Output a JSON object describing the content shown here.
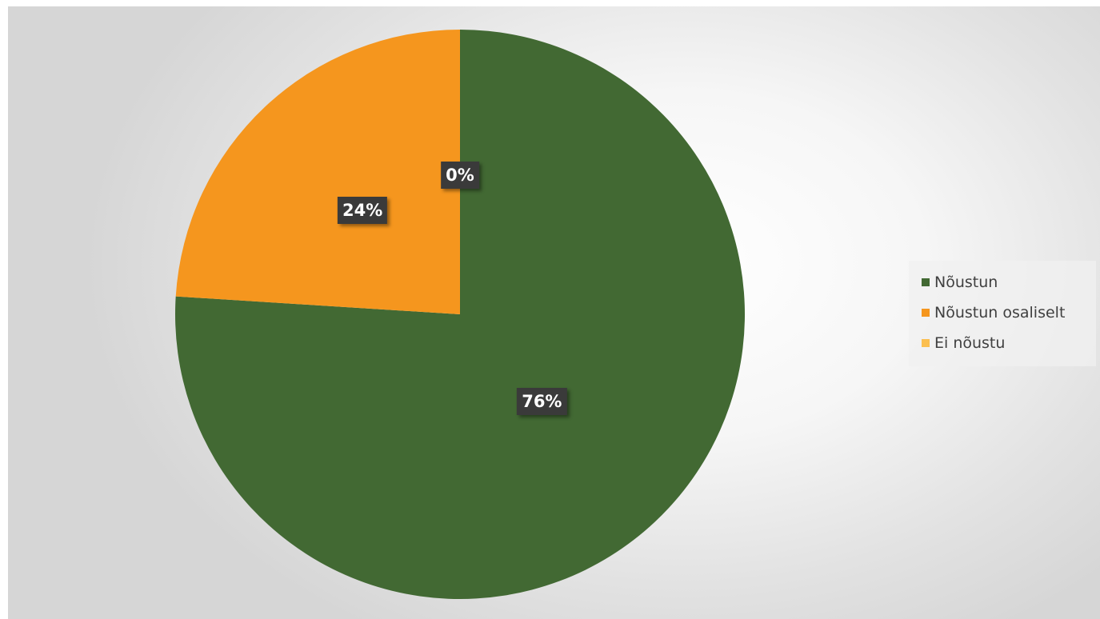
{
  "chart_data": {
    "type": "pie",
    "title": "",
    "start_angle_deg": 0,
    "direction": "clockwise",
    "slices": [
      {
        "label": "Nõustun",
        "value": 76,
        "display": "76%",
        "color": "#426933"
      },
      {
        "label": "Nõustun osaliselt",
        "value": 24,
        "display": "24%",
        "color": "#f5961e"
      },
      {
        "label": "Ei nõustu",
        "value": 0,
        "display": "0%",
        "color": "#fbbf4f"
      }
    ],
    "legend_position": "right"
  }
}
